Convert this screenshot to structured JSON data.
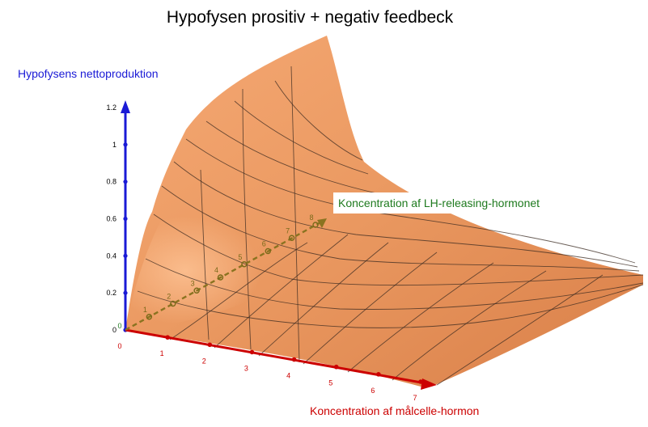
{
  "title": "Hypofysen prositiv + negativ feedbeck",
  "axes": {
    "z": {
      "label": "Hypofysens nettoproduktion",
      "color": "#1a1ad6",
      "ticks": [
        "0",
        "0.2",
        "0.4",
        "0.6",
        "0.8",
        "1",
        "1.2"
      ]
    },
    "x": {
      "label": "Koncentration af målcelle-hormon",
      "color": "#cc0000",
      "ticks": [
        "0",
        "1",
        "2",
        "3",
        "4",
        "5",
        "6",
        "7"
      ]
    },
    "y": {
      "label": "Koncentration af LH-releasing-hormonet",
      "color": "#1e7a1e",
      "ticks": [
        "0",
        "1",
        "2",
        "3",
        "4",
        "5",
        "6",
        "7",
        "8"
      ]
    }
  },
  "colors": {
    "surface": "#ec9860",
    "surface_light": "#f7b27f",
    "surface_dark": "#cf7540",
    "axis_y_dashed": "#7a6a1a",
    "mesh": "#3a2a20"
  }
}
